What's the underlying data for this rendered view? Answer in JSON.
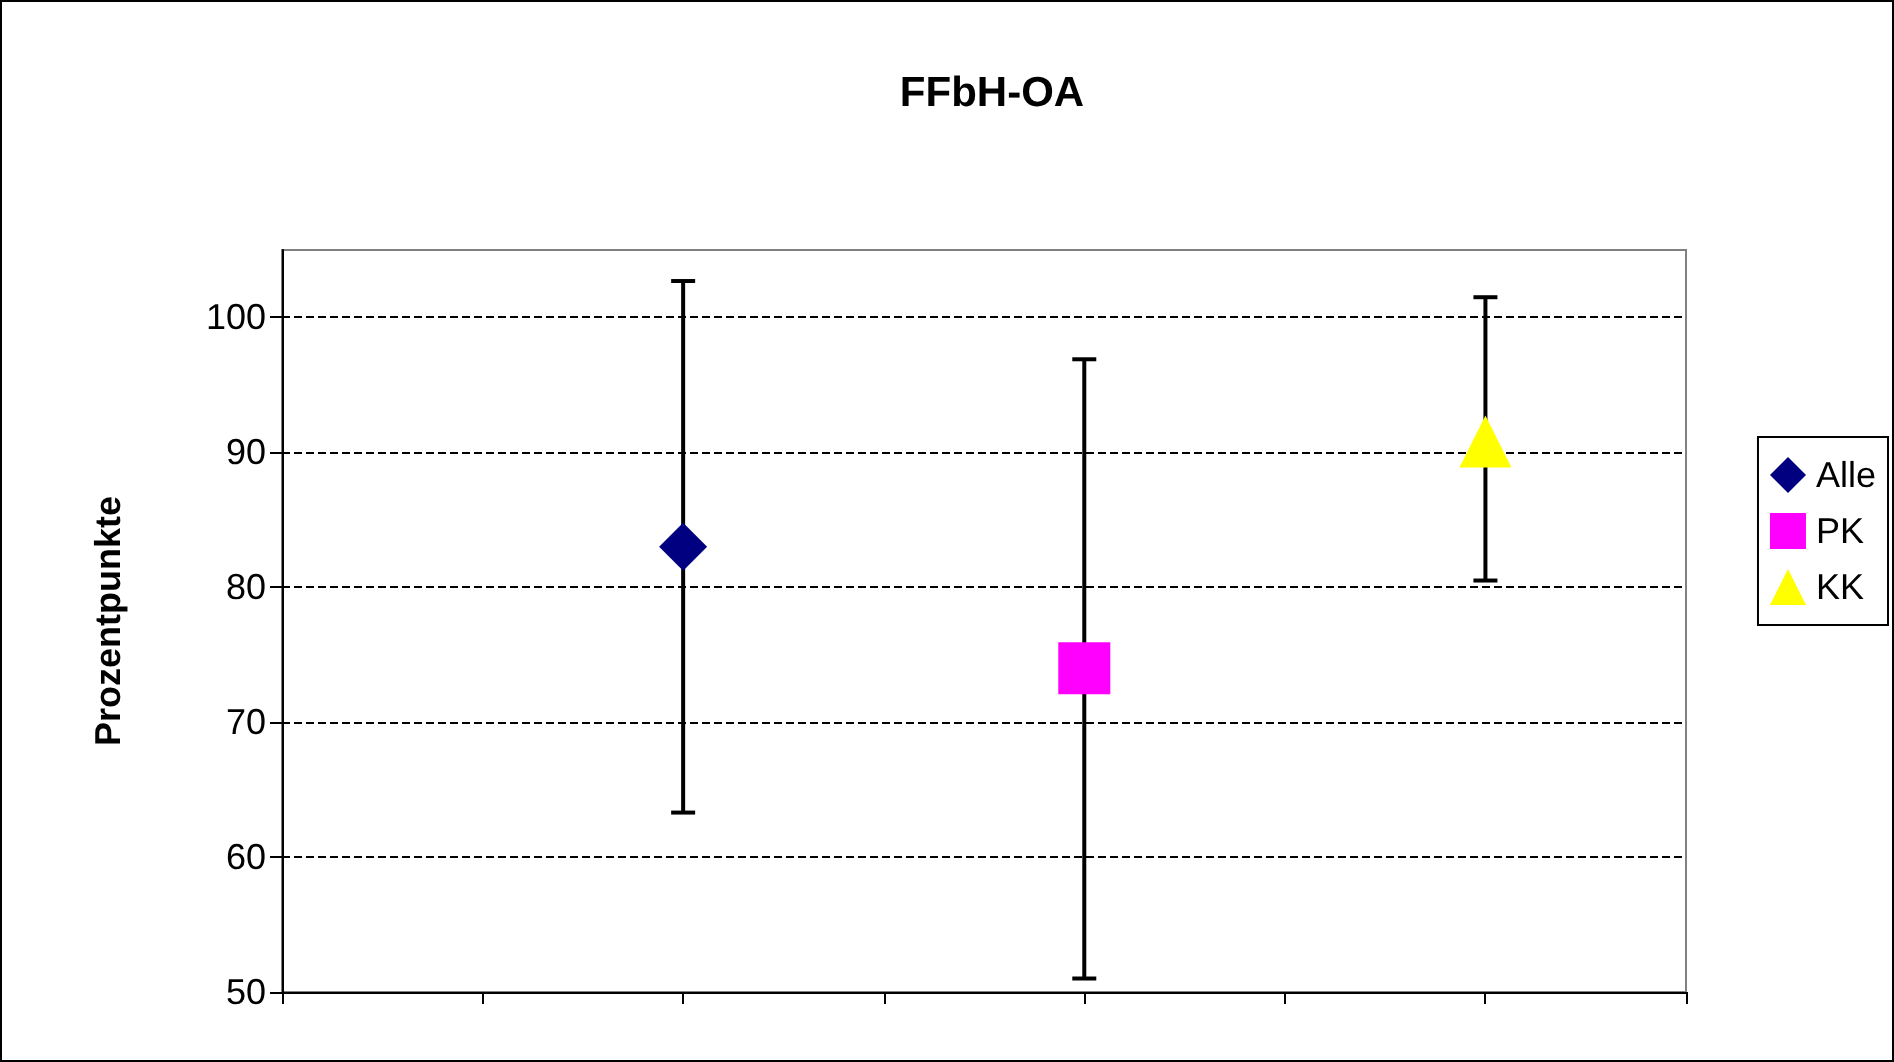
{
  "chart_data": {
    "type": "scatter",
    "title": "FFbH-OA",
    "ylabel": "Prozentpunkte",
    "categories": [
      null,
      null,
      null,
      null,
      null,
      null,
      null,
      null
    ],
    "ylim": [
      50,
      105
    ],
    "yticks": [
      50,
      60,
      70,
      80,
      90,
      100
    ],
    "grid": "y",
    "legend": "right",
    "series": [
      {
        "name": "Alle",
        "color": "#000080",
        "marker": "diamond",
        "values": [
          null,
          null,
          83,
          null,
          null,
          null,
          null,
          null
        ],
        "errors": [
          null,
          null,
          [
            63.3,
            102.7
          ],
          null,
          null,
          null,
          null,
          null
        ]
      },
      {
        "name": "PK",
        "color": "#ff00ff",
        "marker": "square",
        "values": [
          null,
          null,
          null,
          null,
          74,
          null,
          null,
          null
        ],
        "errors": [
          null,
          null,
          null,
          null,
          [
            51,
            96.9
          ],
          null,
          null,
          null
        ]
      },
      {
        "name": "KK",
        "color": "#ffff00",
        "marker": "triangle",
        "values": [
          null,
          null,
          null,
          null,
          null,
          null,
          90.8,
          null
        ],
        "errors": [
          null,
          null,
          null,
          null,
          null,
          null,
          [
            80.5,
            101.5
          ],
          null
        ]
      }
    ]
  }
}
